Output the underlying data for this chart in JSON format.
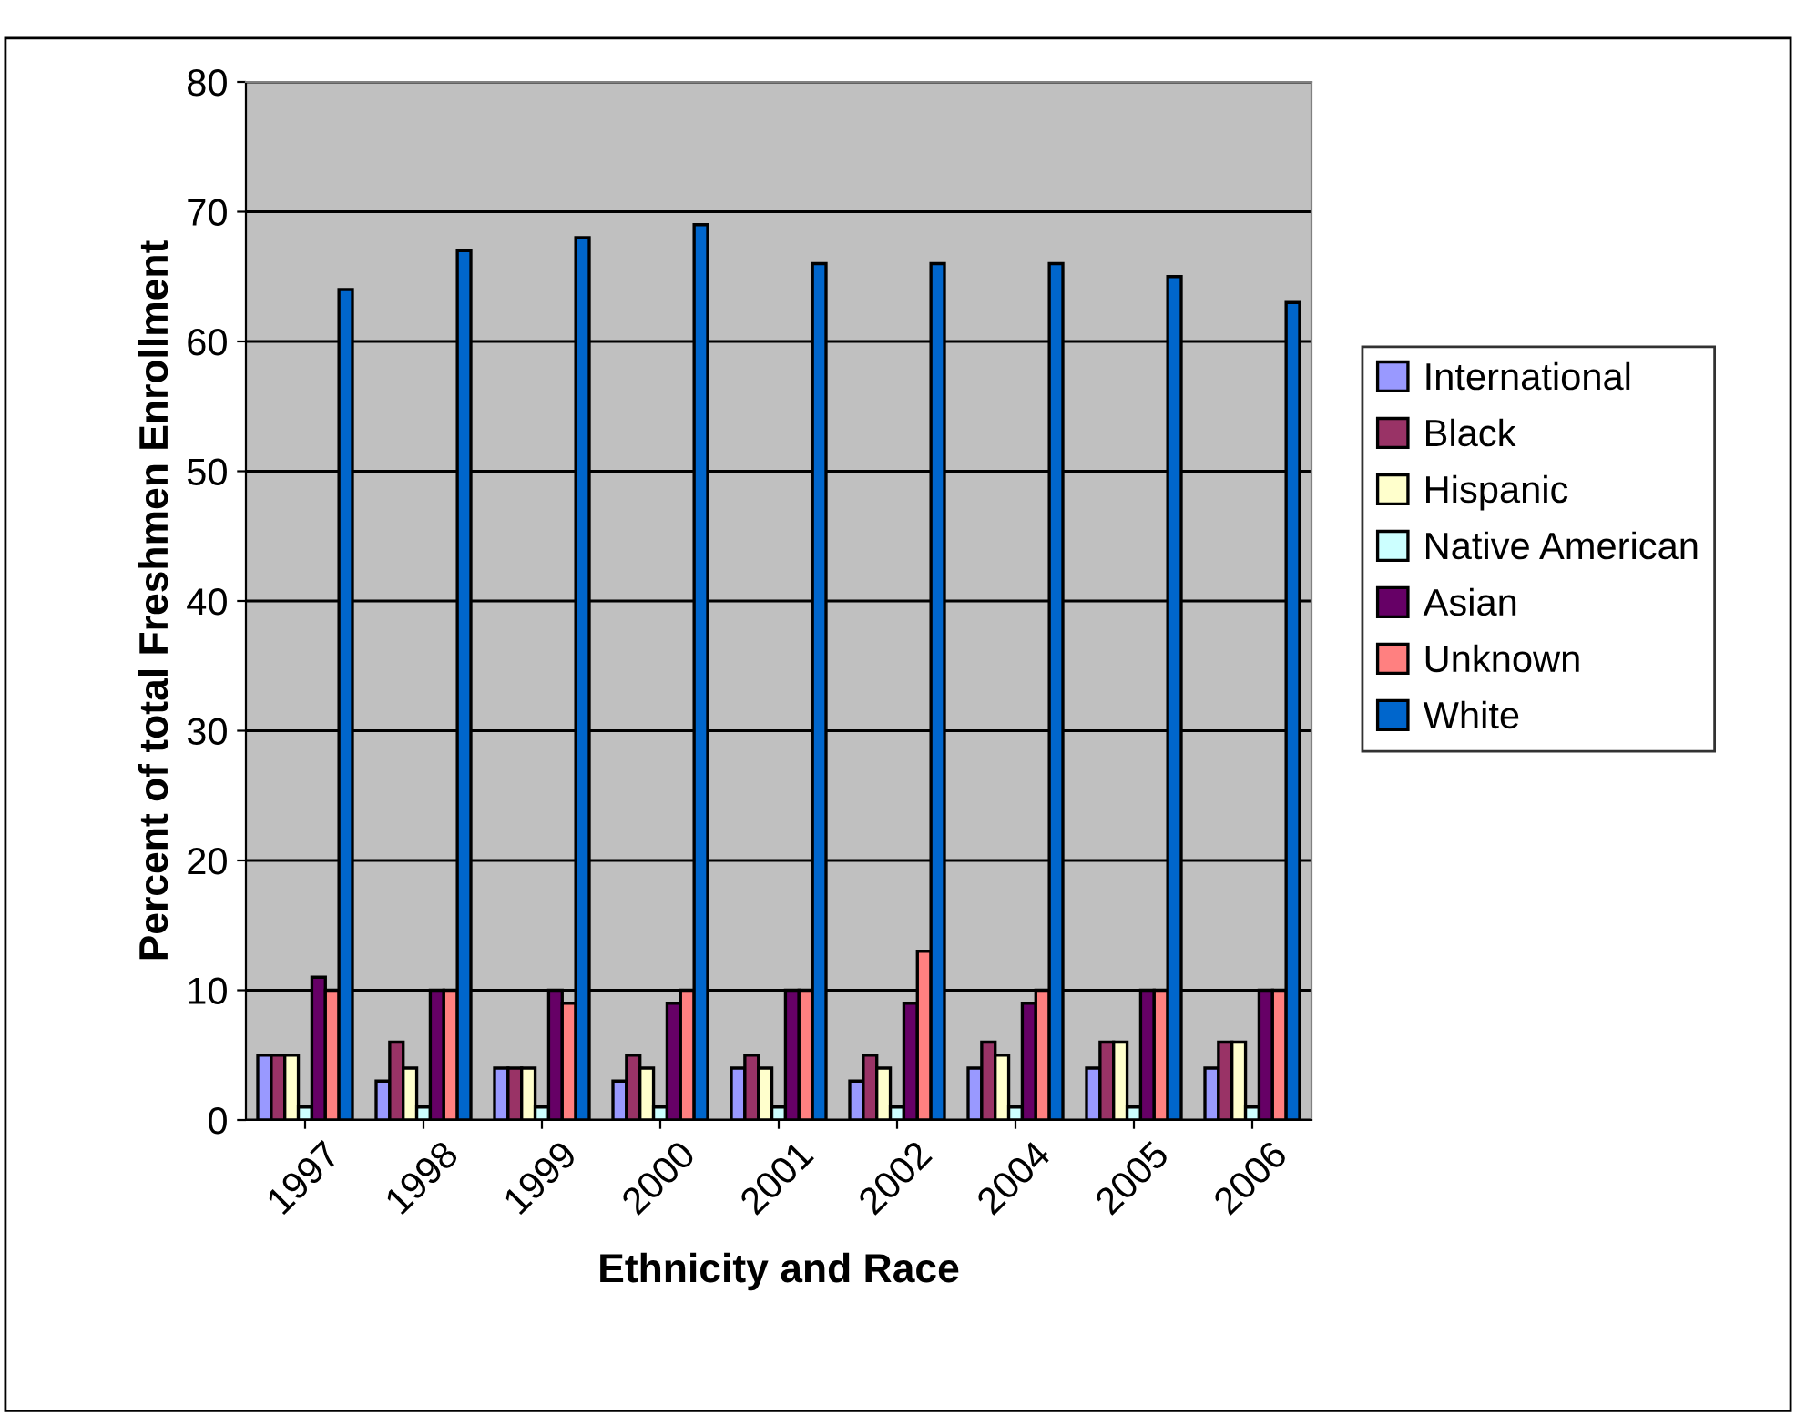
{
  "chart_data": {
    "type": "bar",
    "xlabel": "Ethnicity and Race",
    "ylabel": "Percent of total Freshmen Enrollment",
    "categories": [
      "1997",
      "1998",
      "1999",
      "2000",
      "2001",
      "2002",
      "2004",
      "2005",
      "2006"
    ],
    "series": [
      {
        "name": "International",
        "color": "#9999ff",
        "values": [
          5,
          3,
          4,
          3,
          4,
          3,
          4,
          4,
          4
        ]
      },
      {
        "name": "Black",
        "color": "#993366",
        "values": [
          5,
          6,
          4,
          5,
          5,
          5,
          6,
          6,
          6
        ]
      },
      {
        "name": "Hispanic",
        "color": "#ffffcc",
        "values": [
          5,
          4,
          4,
          4,
          4,
          4,
          5,
          6,
          6
        ]
      },
      {
        "name": "Native American",
        "color": "#ccffff",
        "values": [
          1,
          1,
          1,
          1,
          1,
          1,
          1,
          1,
          1
        ]
      },
      {
        "name": "Asian",
        "color": "#660066",
        "values": [
          11,
          10,
          10,
          9,
          10,
          9,
          9,
          10,
          10
        ]
      },
      {
        "name": "Unknown",
        "color": "#ff8080",
        "values": [
          10,
          10,
          9,
          10,
          10,
          13,
          10,
          10,
          10
        ]
      },
      {
        "name": "White",
        "color": "#0066cc",
        "values": [
          64,
          67,
          68,
          69,
          66,
          66,
          66,
          65,
          63
        ]
      }
    ],
    "ylim": [
      0,
      80
    ],
    "yticks": [
      0,
      10,
      20,
      30,
      40,
      50,
      60,
      70,
      80
    ],
    "grid": "y",
    "legend": "right"
  }
}
